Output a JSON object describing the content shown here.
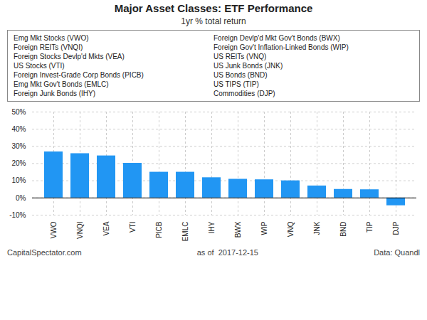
{
  "chart_data": {
    "type": "bar",
    "title": "Major Asset Classes: ETF Performance",
    "subtitle": "1yr % total return",
    "categories": [
      "VWO",
      "VNQI",
      "VEA",
      "VTI",
      "PICB",
      "EMLC",
      "IHY",
      "BWX",
      "WIP",
      "VNQ",
      "JNK",
      "BND",
      "TIP",
      "DJP"
    ],
    "values": [
      26.8,
      25.8,
      24.5,
      20.2,
      15.0,
      15.0,
      11.8,
      10.9,
      10.6,
      10.0,
      7.0,
      5.0,
      4.8,
      -4.5
    ],
    "color": "#2196F3",
    "ylim": [
      -10,
      50
    ],
    "yticks": [
      {
        "value": -10,
        "label": "-10%"
      },
      {
        "value": 0,
        "label": "0%"
      },
      {
        "value": 10,
        "label": "10%"
      },
      {
        "value": 20,
        "label": "20%"
      },
      {
        "value": 30,
        "label": "30%"
      },
      {
        "value": 40,
        "label": "40%"
      },
      {
        "value": 50,
        "label": "50%"
      }
    ],
    "grid": true,
    "annotations": {
      "legend_left": [
        "Emg Mkt Stocks (VWO)",
        "Foreign REITs (VNQI)",
        "Foreign Stocks Devlp'd Mkts (VEA)",
        "US Stocks (VTI)",
        "Foreign Invest-Grade Corp Bonds (PICB)",
        "Emg Mkt Gov't Bonds (EMLC)",
        "Foreign Junk Bonds (IHY)"
      ],
      "legend_right": [
        "Foreign Devlp'd Mkt Gov't Bonds (BWX)",
        "Foreign Gov't Inflation-Linked Bonds (WIP)",
        "US REITs (VNQ)",
        "US Junk Bonds (JNK)",
        "US Bonds (BND)",
        "US TIPS (TIP)",
        "Commodities (DJP)"
      ],
      "footer": [
        "CapitalSpectator.com",
        "as of  2017-12-15",
        "Data: Quandl"
      ]
    }
  }
}
